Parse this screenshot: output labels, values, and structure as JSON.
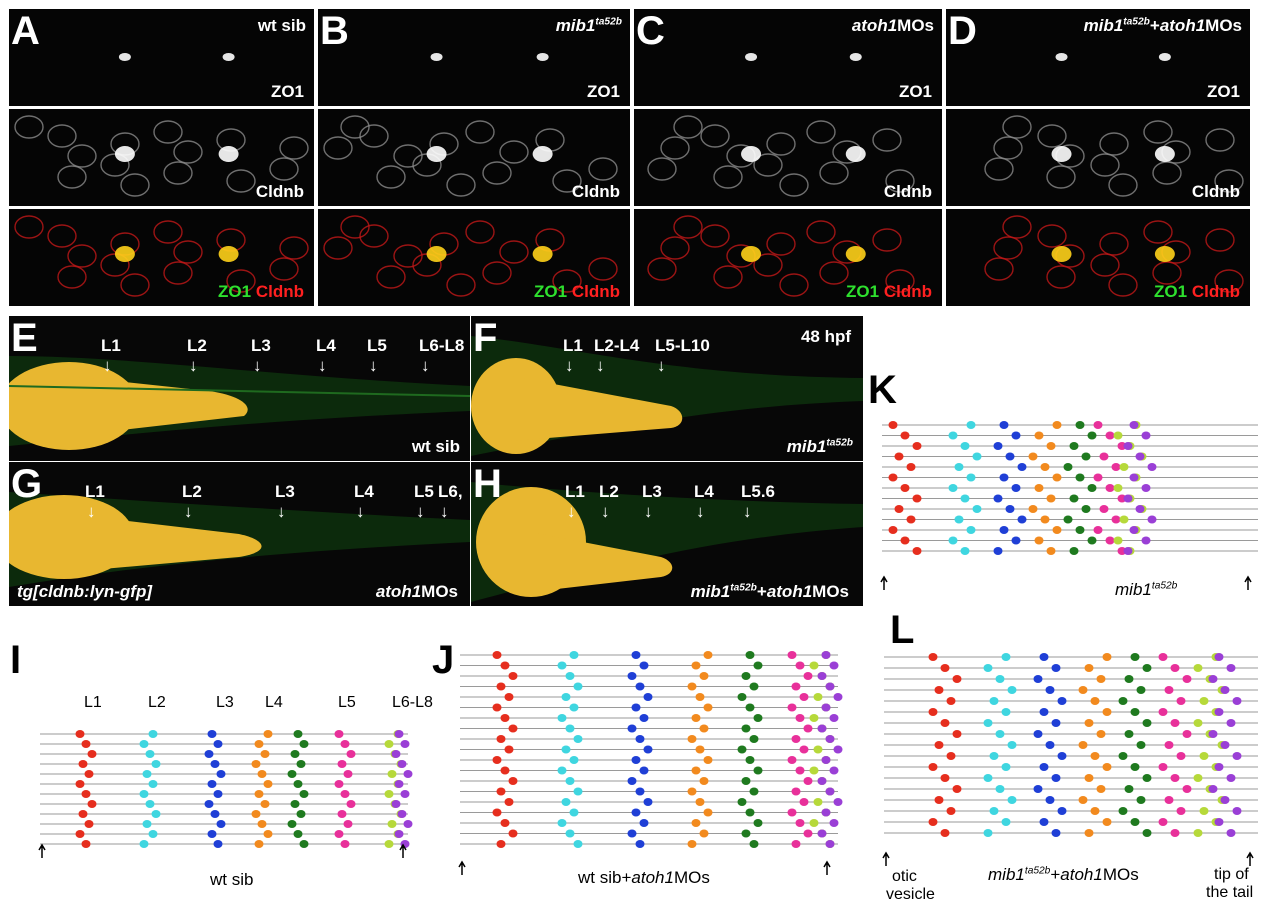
{
  "top_panels": [
    {
      "letter": "A",
      "title": "wt sib",
      "title_parts": [
        {
          "t": "wt sib",
          "i": false
        }
      ]
    },
    {
      "letter": "B",
      "title": "mib1ta52b",
      "title_parts": [
        {
          "t": "mib1",
          "i": true
        },
        {
          "t": "ta52b",
          "i": true,
          "sup": true
        }
      ]
    },
    {
      "letter": "C",
      "title": "atoh1MOs",
      "title_parts": [
        {
          "t": "atoh1",
          "i": true
        },
        {
          "t": "MOs",
          "i": false
        }
      ]
    },
    {
      "letter": "D",
      "title": "mib1ta52b+atoh1MOs",
      "title_parts": [
        {
          "t": "mib1",
          "i": true
        },
        {
          "t": "ta52b",
          "i": true,
          "sup": true
        },
        {
          "t": "+",
          "i": false
        },
        {
          "t": "atoh1",
          "i": true
        },
        {
          "t": "MOs",
          "i": false
        }
      ]
    }
  ],
  "row_labels": {
    "zo1": "ZO1",
    "cldnb": "Cldnb",
    "merge_green": "ZO1",
    "merge_red": "Cldnb"
  },
  "embryo_panels": {
    "E": {
      "letter": "E",
      "bottom": "wt sib",
      "lanes": [
        "L1",
        "L2",
        "L3",
        "L4",
        "L5",
        "L6-L8"
      ]
    },
    "F": {
      "letter": "F",
      "top_right": "48 hpf",
      "bottom_parts": [
        {
          "t": "mib1",
          "i": true
        },
        {
          "t": "ta52b",
          "i": true,
          "sup": true
        }
      ],
      "lanes": [
        "L1",
        "L2-L4",
        "L5-L10"
      ]
    },
    "G": {
      "letter": "G",
      "bottom_left": "tg[cldnb:lyn-gfp]",
      "bottom_parts": [
        {
          "t": "atoh1",
          "i": true
        },
        {
          "t": "MOs",
          "i": false
        }
      ],
      "lanes": [
        "L1",
        "L2",
        "L3",
        "L4",
        "L5",
        "L6,"
      ]
    },
    "H": {
      "letter": "H",
      "bottom_parts": [
        {
          "t": "mib1",
          "i": true
        },
        {
          "t": "ta52b",
          "i": true,
          "sup": true
        },
        {
          "t": "+",
          "i": false
        },
        {
          "t": "atoh1",
          "i": true
        },
        {
          "t": "MOs",
          "i": false
        }
      ],
      "lanes": [
        "L1",
        "L2",
        "L3",
        "L4",
        "L5.6"
      ]
    }
  },
  "diagrams": {
    "I": {
      "letter": "I",
      "caption": "wt sib",
      "header": [
        "L1",
        "L2",
        "L3",
        "L4",
        "L5",
        "L6-L8"
      ]
    },
    "J": {
      "letter": "J",
      "caption_parts": [
        {
          "t": "wt sib+",
          "i": false
        },
        {
          "t": "atoh1",
          "i": true
        },
        {
          "t": "MOs",
          "i": false
        }
      ]
    },
    "K": {
      "letter": "K",
      "caption_parts": [
        {
          "t": "mib1",
          "i": true
        },
        {
          "t": "ta52b",
          "i": true,
          "sup": true
        }
      ]
    },
    "L": {
      "letter": "L",
      "caption_parts": [
        {
          "t": "mib1",
          "i": true
        },
        {
          "t": "ta52b",
          "i": true,
          "sup": true
        },
        {
          "t": "+",
          "i": false
        },
        {
          "t": "atoh1",
          "i": true
        },
        {
          "t": "MOs",
          "i": false
        }
      ],
      "left_note": [
        "otic",
        "vesicle"
      ],
      "right_note": [
        "tip of",
        "the tail"
      ]
    }
  },
  "colors": {
    "red": "#e62e1e",
    "cyan": "#3fd6e0",
    "blue": "#1f3fd6",
    "orange": "#f28a1e",
    "green": "#1f7a1f",
    "magenta": "#e8309a",
    "lime": "#b6d93a",
    "purple": "#9a3fd6",
    "pink": "#f2a0d8",
    "line": "#9a9a9a"
  }
}
